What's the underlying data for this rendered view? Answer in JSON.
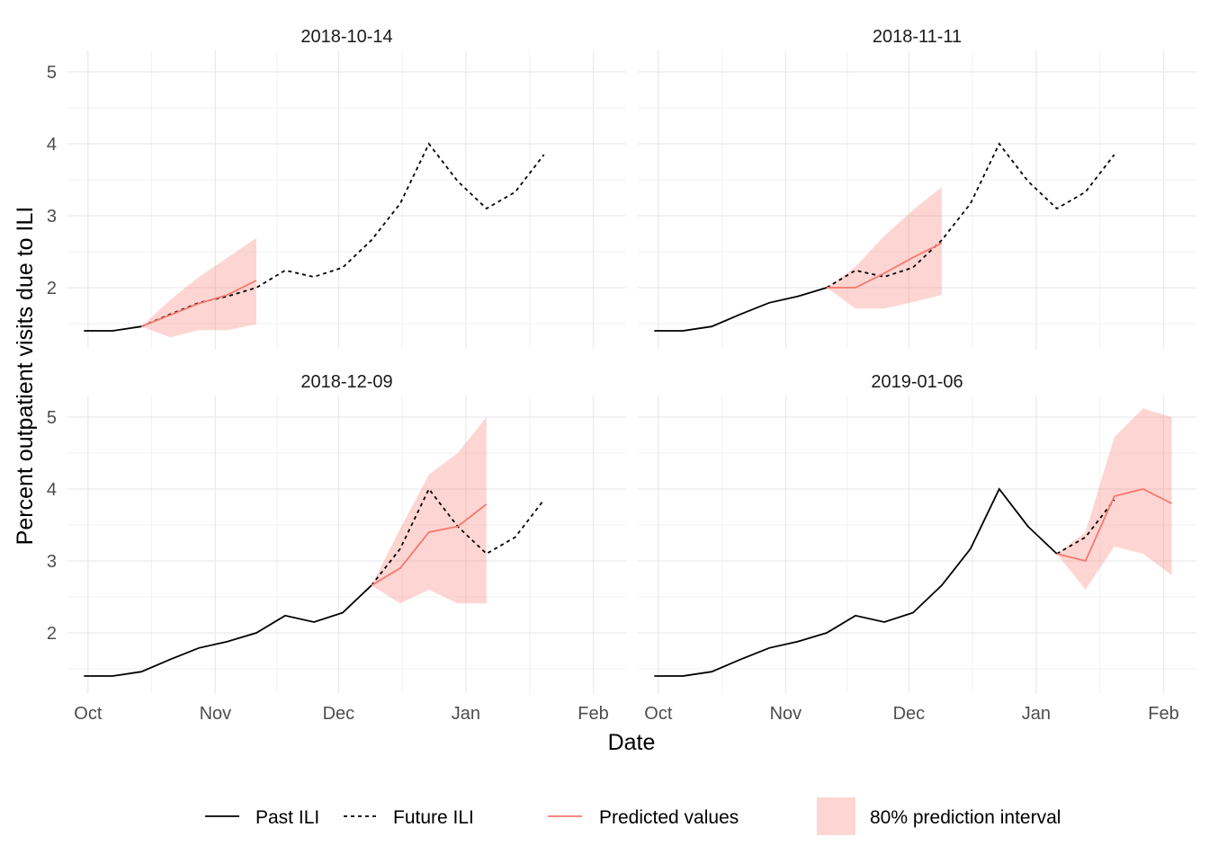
{
  "chart_data": {
    "type": "line",
    "xlabel": "Date",
    "ylabel": "Percent outpatient visits due to ILI",
    "xlim": [
      "2018-09-26",
      "2019-02-09"
    ],
    "ylim": [
      1.15,
      5.3
    ],
    "x_ticks": [
      {
        "date": "2018-10-01",
        "label": "Oct"
      },
      {
        "date": "2018-11-01",
        "label": "Nov"
      },
      {
        "date": "2018-12-01",
        "label": "Dec"
      },
      {
        "date": "2019-01-01",
        "label": "Jan"
      },
      {
        "date": "2019-02-01",
        "label": "Feb"
      }
    ],
    "y_ticks": [
      2,
      3,
      4,
      5
    ],
    "grid": true,
    "colors": {
      "past": "#000000",
      "future": "#000000",
      "predicted": "#f8766d",
      "interval": "#f8766d"
    },
    "legend": {
      "position": "bottom",
      "entries": [
        {
          "key": "past",
          "label": "Past ILI"
        },
        {
          "key": "future",
          "label": "Future ILI"
        },
        {
          "key": "predicted",
          "label": "Predicted values"
        },
        {
          "key": "interval",
          "label": "80% prediction interval"
        }
      ]
    },
    "ili": {
      "dates": [
        "2018-09-30",
        "2018-10-07",
        "2018-10-14",
        "2018-10-21",
        "2018-10-28",
        "2018-11-04",
        "2018-11-11",
        "2018-11-18",
        "2018-11-25",
        "2018-12-02",
        "2018-12-09",
        "2018-12-16",
        "2018-12-23",
        "2018-12-30",
        "2019-01-06",
        "2019-01-13",
        "2019-01-20"
      ],
      "values": [
        1.4,
        1.4,
        1.46,
        1.63,
        1.79,
        1.88,
        2.0,
        2.24,
        2.15,
        2.28,
        2.66,
        3.17,
        4.0,
        3.48,
        3.1,
        3.33,
        3.85
      ]
    },
    "facets": [
      {
        "title": "2018-10-14",
        "forecast_date": "2018-10-14",
        "predicted": {
          "dates": [
            "2018-10-14",
            "2018-10-21",
            "2018-10-28",
            "2018-11-04",
            "2018-11-11"
          ],
          "values": [
            1.46,
            1.62,
            1.78,
            1.9,
            2.1
          ]
        },
        "interval": {
          "dates": [
            "2018-10-14",
            "2018-10-21",
            "2018-10-28",
            "2018-11-04",
            "2018-11-11"
          ],
          "lower": [
            1.46,
            1.31,
            1.41,
            1.41,
            1.49
          ],
          "upper": [
            1.46,
            1.83,
            2.15,
            2.42,
            2.69
          ]
        }
      },
      {
        "title": "2018-11-11",
        "forecast_date": "2018-11-11",
        "predicted": {
          "dates": [
            "2018-11-11",
            "2018-11-18",
            "2018-11-25",
            "2018-12-02",
            "2018-12-09"
          ],
          "values": [
            2.0,
            2.0,
            2.2,
            2.42,
            2.62
          ]
        },
        "interval": {
          "dates": [
            "2018-11-11",
            "2018-11-18",
            "2018-11-25",
            "2018-12-02",
            "2018-12-09"
          ],
          "lower": [
            2.0,
            1.71,
            1.71,
            1.8,
            1.9
          ],
          "upper": [
            2.0,
            2.29,
            2.72,
            3.08,
            3.4
          ]
        }
      },
      {
        "title": "2018-12-09",
        "forecast_date": "2018-12-09",
        "predicted": {
          "dates": [
            "2018-12-09",
            "2018-12-16",
            "2018-12-23",
            "2018-12-30",
            "2019-01-06"
          ],
          "values": [
            2.66,
            2.9,
            3.4,
            3.48,
            3.79
          ]
        },
        "interval": {
          "dates": [
            "2018-12-09",
            "2018-12-16",
            "2018-12-23",
            "2018-12-30",
            "2019-01-06"
          ],
          "lower": [
            2.66,
            2.41,
            2.6,
            2.41,
            2.41
          ],
          "upper": [
            2.66,
            3.45,
            4.2,
            4.5,
            5.0
          ]
        }
      },
      {
        "title": "2019-01-06",
        "forecast_date": "2019-01-06",
        "predicted": {
          "dates": [
            "2019-01-06",
            "2019-01-13",
            "2019-01-20",
            "2019-01-27",
            "2019-02-03"
          ],
          "values": [
            3.1,
            3.0,
            3.9,
            4.0,
            3.8
          ]
        },
        "interval": {
          "dates": [
            "2019-01-06",
            "2019-01-13",
            "2019-01-20",
            "2019-01-27",
            "2019-02-03"
          ],
          "lower": [
            3.1,
            2.6,
            3.2,
            3.1,
            2.8
          ],
          "upper": [
            3.1,
            3.4,
            4.72,
            5.12,
            5.0
          ]
        }
      }
    ]
  }
}
